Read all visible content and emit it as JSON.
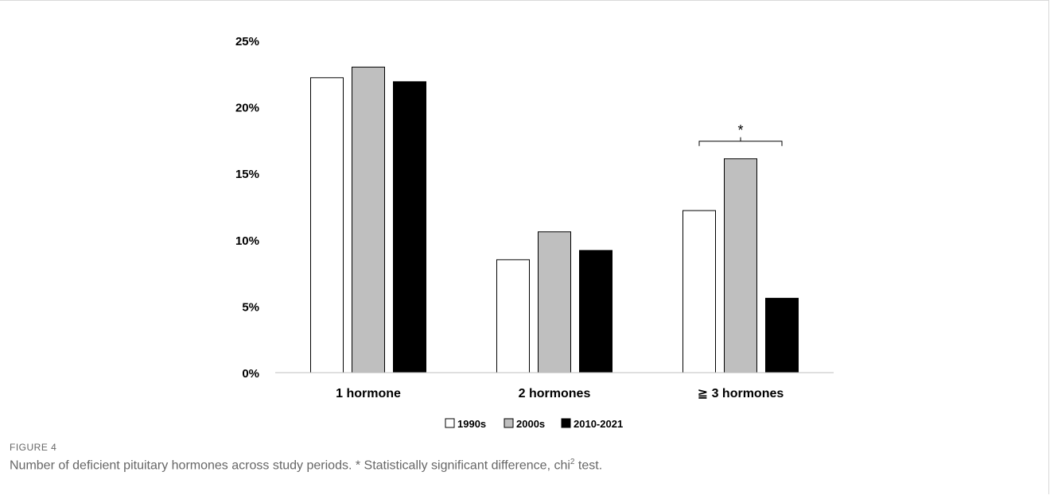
{
  "chart_data": {
    "type": "bar",
    "categories": [
      "1 hormone",
      "2 hormones",
      "≧ 3 hormones"
    ],
    "series": [
      {
        "name": "1990s",
        "values": [
          22.2,
          8.5,
          12.2
        ],
        "color": "#ffffff"
      },
      {
        "name": "2000s",
        "values": [
          23.0,
          10.6,
          16.1
        ],
        "color": "#bfbfbf"
      },
      {
        "name": "2010-2021",
        "values": [
          21.9,
          9.2,
          5.6
        ],
        "color": "#000000"
      }
    ],
    "ylim": [
      0,
      25
    ],
    "yticks": [
      "0%",
      "5%",
      "10%",
      "15%",
      "20%",
      "25%"
    ],
    "ytick_values": [
      0,
      5,
      10,
      15,
      20,
      25
    ],
    "legend_position": "bottom",
    "grid": false,
    "annotation": {
      "category": "≧ 3 hormones",
      "text": "*"
    }
  },
  "caption": {
    "label": "FIGURE 4",
    "text_before": "Number of deficient pituitary hormones across study periods. * Statistically significant difference, chi",
    "superscript": "2",
    "text_after": " test."
  }
}
